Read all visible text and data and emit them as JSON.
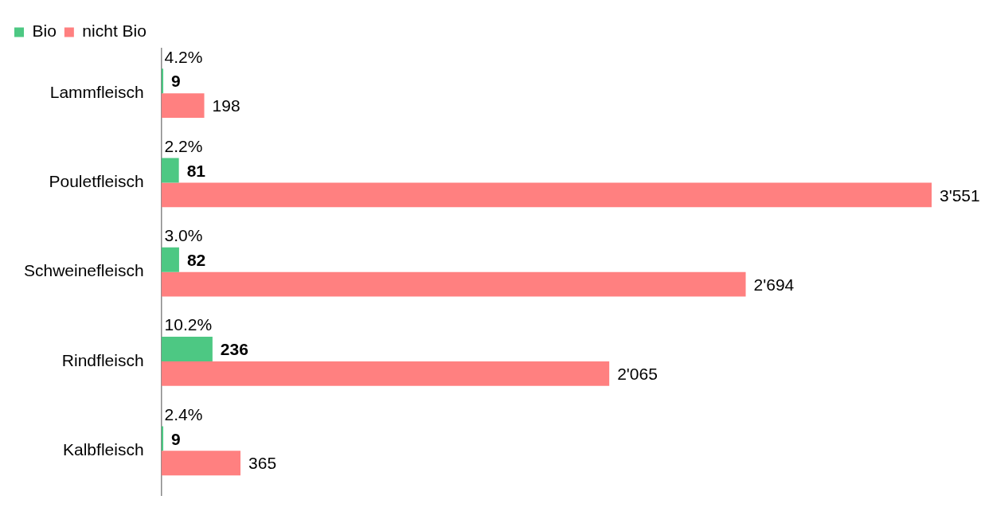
{
  "chart_data": {
    "type": "bar",
    "orientation": "horizontal",
    "categories": [
      "Lammfleisch",
      "Pouletfleisch",
      "Schweinefleisch",
      "Rindfleisch",
      "Kalbfleisch"
    ],
    "series": [
      {
        "name": "Bio",
        "color": "#4dc883",
        "values": [
          9,
          81,
          82,
          236,
          9
        ],
        "value_labels": [
          "9",
          "81",
          "82",
          "236",
          "9"
        ]
      },
      {
        "name": "nicht Bio",
        "color": "#ff8080",
        "values": [
          198,
          3551,
          2694,
          2065,
          365
        ],
        "value_labels": [
          "198",
          "3'551",
          "2'694",
          "2'065",
          "365"
        ]
      }
    ],
    "xlim": [
      0,
      3551
    ],
    "tick_labels": "y",
    "legend": "top left",
    "annotations": [
      {
        "text": "4.2%",
        "y": "Lammfleisch"
      },
      {
        "text": "2.2%",
        "y": "Pouletfleisch"
      },
      {
        "text": "3.0%",
        "y": "Schweinefleisch"
      },
      {
        "text": "10.2%",
        "y": "Rindfleisch"
      },
      {
        "text": "2.4%",
        "y": "Kalbfleisch"
      }
    ]
  }
}
